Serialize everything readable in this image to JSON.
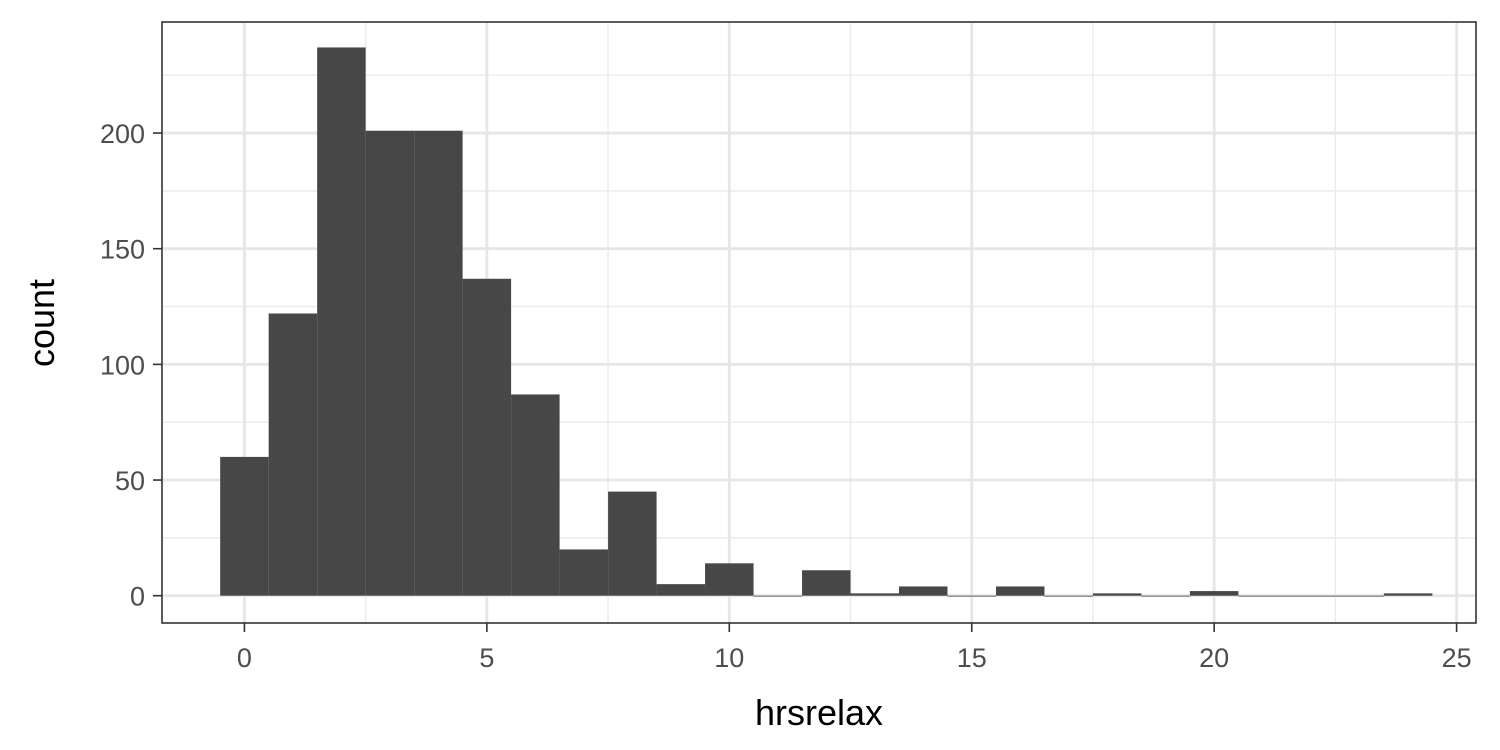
{
  "chart_data": {
    "type": "bar",
    "xlabel": "hrsrelax",
    "ylabel": "count",
    "xlim": [
      -1.7,
      25.4
    ],
    "ylim": [
      -11.8,
      248
    ],
    "x_ticks": [
      0,
      5,
      10,
      15,
      20,
      25
    ],
    "x_tick_labels": [
      "0",
      "5",
      "10",
      "15",
      "20",
      "25"
    ],
    "y_ticks": [
      0,
      50,
      100,
      150,
      200
    ],
    "y_tick_labels": [
      "0",
      "50",
      "100",
      "150",
      "200"
    ],
    "bin_width": 1,
    "bins": [
      {
        "x": 0,
        "count": 60
      },
      {
        "x": 1,
        "count": 122
      },
      {
        "x": 2,
        "count": 237
      },
      {
        "x": 3,
        "count": 201
      },
      {
        "x": 4,
        "count": 201
      },
      {
        "x": 5,
        "count": 137
      },
      {
        "x": 6,
        "count": 87
      },
      {
        "x": 7,
        "count": 20
      },
      {
        "x": 8,
        "count": 45
      },
      {
        "x": 9,
        "count": 5
      },
      {
        "x": 10,
        "count": 14
      },
      {
        "x": 11,
        "count": 0
      },
      {
        "x": 12,
        "count": 11
      },
      {
        "x": 13,
        "count": 1
      },
      {
        "x": 14,
        "count": 4
      },
      {
        "x": 15,
        "count": 0
      },
      {
        "x": 16,
        "count": 4
      },
      {
        "x": 17,
        "count": 0
      },
      {
        "x": 18,
        "count": 1
      },
      {
        "x": 19,
        "count": 0
      },
      {
        "x": 20,
        "count": 2
      },
      {
        "x": 21,
        "count": 0
      },
      {
        "x": 22,
        "count": 0
      },
      {
        "x": 23,
        "count": 0
      },
      {
        "x": 24,
        "count": 1
      }
    ],
    "bar_color": "#474747",
    "grid": true,
    "legend": "none"
  }
}
